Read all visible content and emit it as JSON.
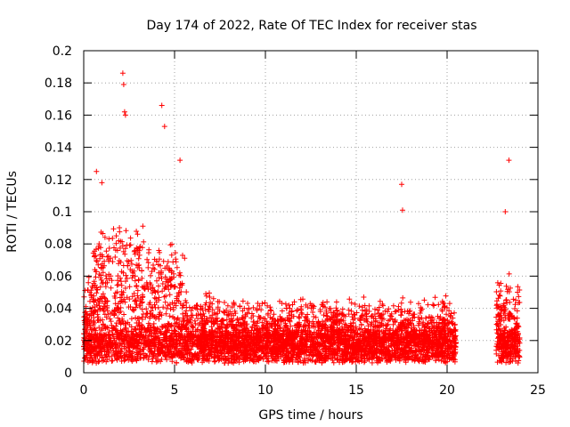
{
  "chart_data": {
    "type": "scatter",
    "title": "Day 174 of 2022, Rate Of TEC Index for receiver stas",
    "xlabel": "GPS time / hours",
    "ylabel": "ROTI / TECUs",
    "xlim": [
      0,
      25
    ],
    "ylim": [
      0,
      0.2
    ],
    "xticks": [
      0,
      5,
      10,
      15,
      20,
      25
    ],
    "yticks": [
      0,
      0.02,
      0.04,
      0.06,
      0.08,
      0.1,
      0.12,
      0.14,
      0.16,
      0.18,
      0.2
    ],
    "grid": true,
    "marker": "+",
    "color": "#ff0000",
    "point_count": 13260,
    "data_gaps_hours": [
      [
        20.5,
        22.7
      ]
    ],
    "series": [
      {
        "x": [
          2.15,
          2.2,
          2.25,
          2.3,
          4.3,
          4.45,
          17.5,
          17.55,
          23.4,
          23.2,
          0.7,
          1.0,
          5.3
        ],
        "y": [
          0.186,
          0.179,
          0.162,
          0.16,
          0.166,
          0.153,
          0.117,
          0.101,
          0.132,
          0.1,
          0.125,
          0.118,
          0.132
        ]
      }
    ]
  }
}
